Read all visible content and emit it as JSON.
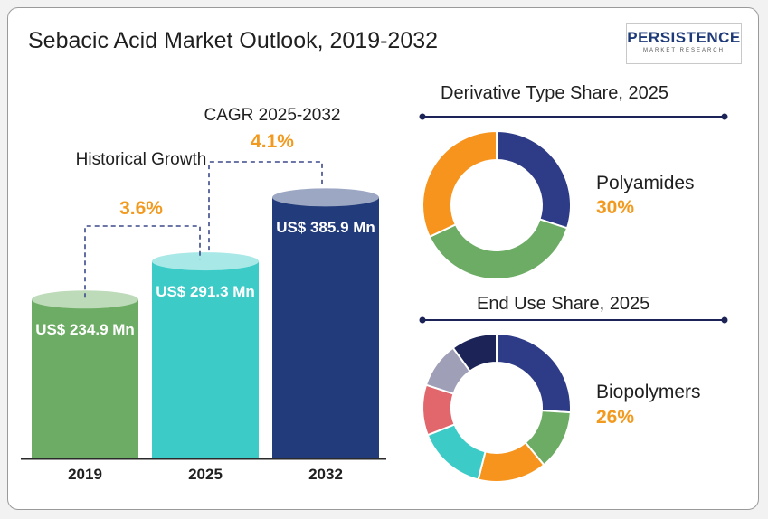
{
  "title": "Sebacic Acid Market Outlook, 2019-2032",
  "logo": {
    "brand": "PERSISTENCE",
    "sub": "MARKET RESEARCH"
  },
  "chart_data": [
    {
      "type": "bar",
      "title": "",
      "categories": [
        "2019",
        "2025",
        "2032"
      ],
      "values": [
        234.9,
        291.3,
        385.9
      ],
      "value_labels": [
        "US$ 234.9 Mn",
        "US$ 291.3 Mn",
        "US$ 385.9 Mn"
      ],
      "colors": [
        "#6dac64",
        "#3dcbc8",
        "#223b7a"
      ],
      "annotations": [
        {
          "text": "Historical Growth",
          "value": "3.6%"
        },
        {
          "text": "CAGR 2025-2032",
          "value": "4.1%"
        }
      ]
    },
    {
      "type": "pie",
      "title": "Derivative Type Share, 2025",
      "highlight": {
        "label": "Polyamides",
        "value": "30%"
      },
      "slices": [
        {
          "value": 30,
          "color": "#2e3b86"
        },
        {
          "value": 38,
          "color": "#6dac64"
        },
        {
          "value": 32,
          "color": "#f7941d"
        }
      ]
    },
    {
      "type": "pie",
      "title": "End Use Share, 2025",
      "highlight": {
        "label": "Biopolymers",
        "value": "26%"
      },
      "slices": [
        {
          "value": 26,
          "color": "#2e3b86"
        },
        {
          "value": 13,
          "color": "#6dac64"
        },
        {
          "value": 15,
          "color": "#f7941d"
        },
        {
          "value": 15,
          "color": "#3dcbc8"
        },
        {
          "value": 11,
          "color": "#e1676d"
        },
        {
          "value": 10,
          "color": "#a09fb8"
        },
        {
          "value": 10,
          "color": "#1c2457"
        }
      ]
    }
  ]
}
